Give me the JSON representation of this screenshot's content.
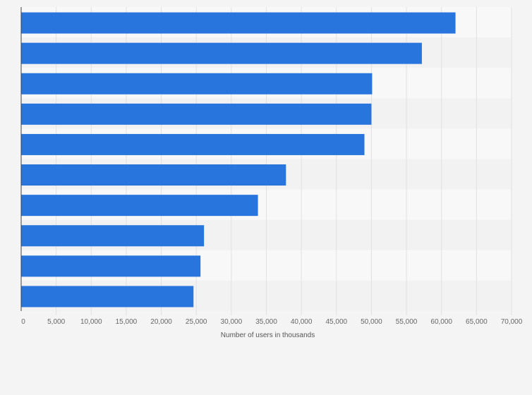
{
  "chart_data": {
    "type": "bar",
    "orientation": "horizontal",
    "categories": [
      "",
      "",
      "",
      "",
      "",
      "",
      "",
      "",
      "",
      ""
    ],
    "values": [
      62000,
      57200,
      50100,
      50000,
      49000,
      37800,
      33800,
      26100,
      25600,
      24600
    ],
    "xlabel": "Number of users in thousands",
    "ylabel": "",
    "xlim": [
      0,
      70000
    ],
    "ticks": [
      "0",
      "5,000",
      "10,000",
      "15,000",
      "20,000",
      "25,000",
      "30,000",
      "35,000",
      "40,000",
      "45,000",
      "50,000",
      "55,000",
      "60,000",
      "65,000",
      "70,000"
    ],
    "grid": true,
    "legend": "none",
    "colors": {
      "bar": "#2876dd",
      "band_a": "#f8f8f8",
      "band_b": "#f2f2f2",
      "grid": "#e1e1e1",
      "axis": "#444444"
    }
  }
}
